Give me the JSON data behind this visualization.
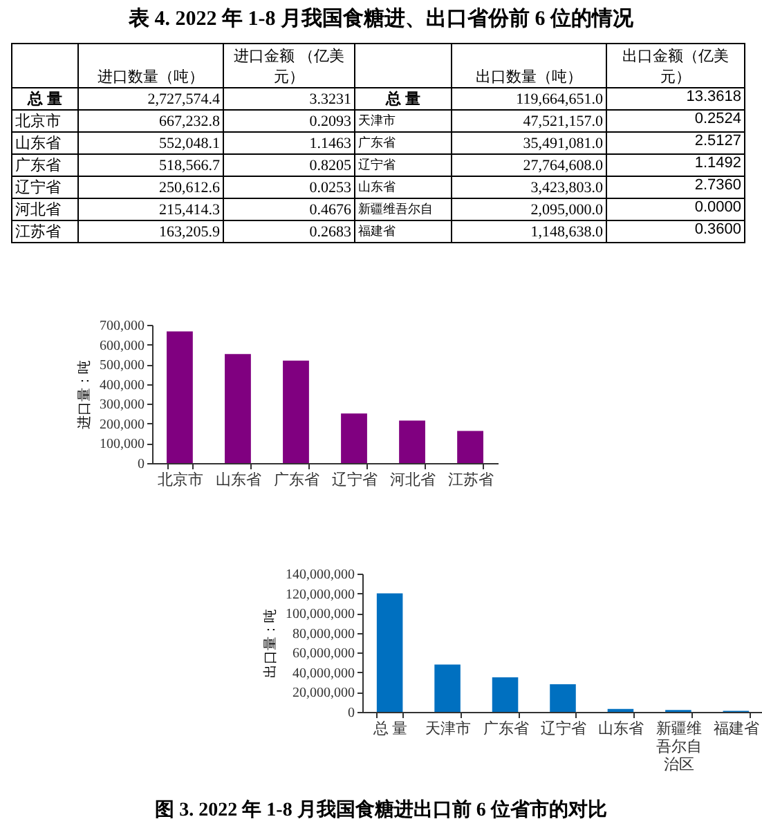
{
  "chart_data": [
    {
      "type": "other",
      "title": "表 4. 2022 年 1-8 月我国食糖进、出口省份前 6 位的情况",
      "annotations": [
        "进口数量（吨）",
        "进口金额 （亿美元）",
        "出口数量（吨）",
        "出口金额（亿美元）",
        "总 量",
        "2,727,574.4",
        "3.3231",
        "总 量",
        "119,664,651.0",
        "13.3618",
        "北京市",
        "667,232.8",
        "0.2093",
        "天津市",
        "47,521,157.0",
        "0.2524",
        "山东省",
        "552,048.1",
        "1.1463",
        "广东省",
        "35,491,081.0",
        "2.5127",
        "广东省",
        "518,566.7",
        "0.8205",
        "辽宁省",
        "27,764,608.0",
        "1.1492",
        "辽宁省",
        "250,612.6",
        "0.0253",
        "山东省",
        "3,423,803.0",
        "2.7360",
        "河北省",
        "215,414.3",
        "0.4676",
        "新疆维吾尔自",
        "2,095,000.0",
        "0.0000",
        "江苏省",
        "163,205.9",
        "0.2683",
        "福建省",
        "1,148,638.0",
        "0.3600"
      ]
    },
    {
      "type": "bar",
      "ylabel": "进口量：吨",
      "categories": [
        "北京市",
        "山东省",
        "广东省",
        "辽宁省",
        "河北省",
        "江苏省"
      ],
      "values": [
        667000,
        552000,
        519000,
        251000,
        215000,
        163000
      ],
      "color": "#800080",
      "ylim": [
        0,
        700000
      ],
      "yticks": [
        0,
        {
          "value": 100000,
          "label": "100,000"
        },
        {
          "value": 200000,
          "label": "200,000"
        },
        {
          "value": 300000,
          "label": "300,000"
        },
        {
          "value": 400000,
          "label": "400,000"
        },
        {
          "value": 500000,
          "label": "500,000"
        },
        {
          "value": 600000,
          "label": "600,000"
        },
        {
          "value": 700000,
          "label": "700,000"
        }
      ],
      "grid": false
    },
    {
      "type": "bar",
      "ylabel": "出口量：吨",
      "categories": [
        "总 量",
        "天津市",
        "广东省",
        "辽宁省",
        "山东省",
        "新疆维吾尔自治区",
        "福建省"
      ],
      "values": [
        120000000,
        48000000,
        35000000,
        28000000,
        3000000,
        2000000,
        1000000
      ],
      "color": "#0070c0",
      "ylim": [
        0,
        140000000
      ],
      "yticks": [
        0,
        {
          "value": 20000000,
          "label": "20,000,000"
        },
        {
          "value": 40000000,
          "label": "40,000,000"
        },
        {
          "value": 60000000,
          "label": "60,000,000"
        },
        {
          "value": 80000000,
          "label": "80,000,000"
        },
        {
          "value": 100000000,
          "label": "100,000,000"
        },
        {
          "value": 120000000,
          "label": "120,000,000"
        },
        {
          "value": 140000000,
          "label": "140,000,000"
        }
      ],
      "grid": false,
      "annotations": [
        "图 3. 2022 年 1-8 月我国食糖进出口前 6 位省市的对比"
      ]
    }
  ]
}
